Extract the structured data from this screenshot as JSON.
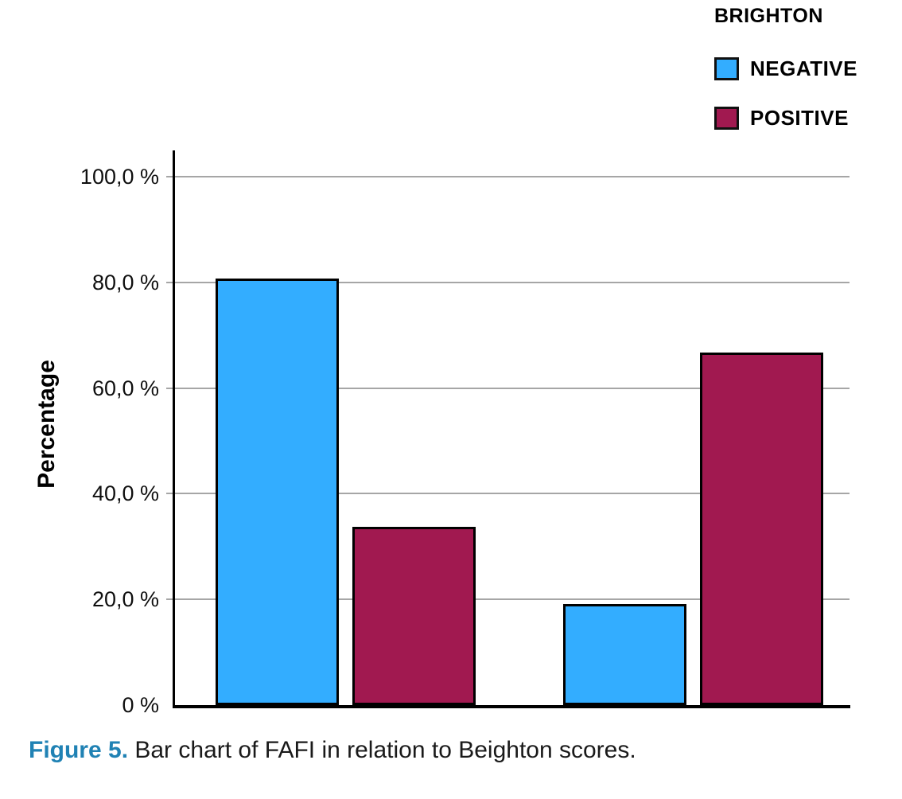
{
  "legend": {
    "title": "BRIGHTON",
    "items": [
      {
        "label": "NEGATIVE",
        "color": "#33ADFF"
      },
      {
        "label": "POSITIVE",
        "color": "#A11950"
      }
    ]
  },
  "chart_data": {
    "type": "bar",
    "ylabel": "Percentage",
    "categories": [
      "",
      ""
    ],
    "series": [
      {
        "name": "NEGATIVE",
        "color": "#33ADFF",
        "values": [
          80.7,
          19.2
        ]
      },
      {
        "name": "POSITIVE",
        "color": "#A11950",
        "values": [
          33.7,
          66.7
        ]
      }
    ],
    "ylim": [
      0,
      105
    ],
    "yticks": [
      {
        "value": 100,
        "label": "100,0 %"
      },
      {
        "value": 80,
        "label": "80,0 %"
      },
      {
        "value": 60,
        "label": "60,0 %"
      },
      {
        "value": 40,
        "label": "40,0 %"
      },
      {
        "value": 20,
        "label": "20,0 %"
      },
      {
        "value": 0,
        "label": "0 %"
      }
    ],
    "grid": true,
    "legend_position": "top-right",
    "colors": {
      "gridline": "#A6A6A6",
      "axis": "#000000",
      "bar_border": "#000000"
    }
  },
  "caption": {
    "label": "Figure 5.",
    "text": " Bar chart of FAFI in relation to Beighton scores.",
    "label_color": "#2082B4"
  }
}
